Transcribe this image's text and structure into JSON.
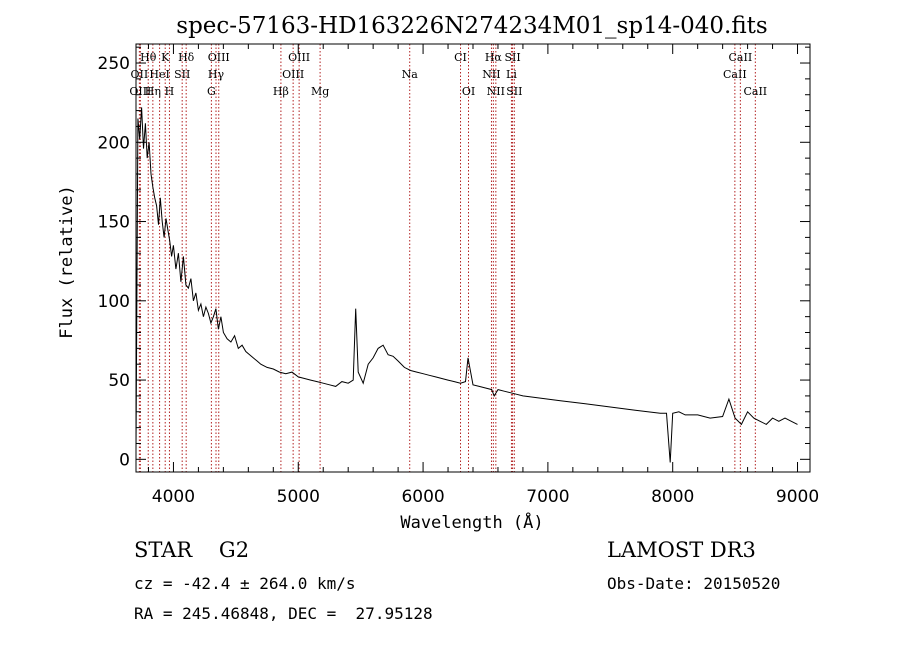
{
  "chart_data": {
    "type": "line",
    "title": "spec-57163-HD163226N274234M01_sp14-040.fits",
    "xlabel": "Wavelength (Å)",
    "ylabel": "Flux (relative)",
    "xlim": [
      3700,
      9100
    ],
    "ylim": [
      -8,
      262
    ],
    "xticks": [
      4000,
      5000,
      6000,
      7000,
      8000,
      9000
    ],
    "yticks": [
      0,
      50,
      100,
      150,
      200,
      250
    ],
    "line_color": "#000000",
    "marker_color": "#b22222",
    "grid": false,
    "spectrum": {
      "name": "",
      "x": [
        3700,
        3715,
        3730,
        3745,
        3760,
        3775,
        3790,
        3805,
        3820,
        3835,
        3850,
        3865,
        3880,
        3895,
        3910,
        3925,
        3940,
        3955,
        3970,
        3985,
        4000,
        4020,
        4040,
        4060,
        4080,
        4100,
        4120,
        4140,
        4160,
        4180,
        4200,
        4220,
        4240,
        4260,
        4280,
        4300,
        4320,
        4340,
        4360,
        4380,
        4400,
        4430,
        4460,
        4490,
        4520,
        4550,
        4580,
        4610,
        4640,
        4670,
        4700,
        4750,
        4800,
        4850,
        4900,
        4950,
        5000,
        5050,
        5100,
        5150,
        5200,
        5250,
        5300,
        5350,
        5400,
        5440,
        5460,
        5480,
        5520,
        5560,
        5600,
        5640,
        5680,
        5720,
        5760,
        5800,
        5850,
        5900,
        5950,
        6000,
        6050,
        6100,
        6150,
        6200,
        6250,
        6300,
        6340,
        6360,
        6400,
        6450,
        6500,
        6550,
        6570,
        6600,
        6650,
        6700,
        6750,
        6800,
        6900,
        7000,
        7100,
        7200,
        7300,
        7400,
        7500,
        7600,
        7700,
        7800,
        7900,
        7950,
        7980,
        8000,
        8050,
        8100,
        8200,
        8300,
        8400,
        8450,
        8500,
        8550,
        8600,
        8650,
        8700,
        8750,
        8800,
        8850,
        8900,
        8950,
        9000
      ],
      "y": [
        5,
        215,
        202,
        222,
        196,
        212,
        190,
        200,
        180,
        172,
        165,
        160,
        148,
        165,
        150,
        140,
        152,
        145,
        138,
        128,
        135,
        120,
        130,
        112,
        128,
        110,
        108,
        114,
        100,
        105,
        94,
        98,
        90,
        96,
        92,
        86,
        90,
        95,
        82,
        90,
        80,
        76,
        74,
        78,
        70,
        72,
        68,
        66,
        64,
        62,
        60,
        58,
        57,
        55,
        54,
        55,
        52,
        51,
        50,
        49,
        48,
        47,
        46,
        49,
        48,
        50,
        95,
        55,
        48,
        60,
        64,
        70,
        72,
        66,
        65,
        62,
        58,
        56,
        55,
        54,
        53,
        52,
        51,
        50,
        49,
        48,
        49,
        64,
        47,
        46,
        45,
        44,
        40,
        44,
        43,
        42,
        41,
        40,
        39,
        38,
        37,
        36,
        35,
        34,
        33,
        32,
        31,
        30,
        29,
        29,
        -2,
        29,
        30,
        28,
        28,
        26,
        27,
        38,
        26,
        22,
        30,
        26,
        24,
        22,
        26,
        24,
        26,
        24,
        22
      ]
    },
    "lines_row1": [
      {
        "label": "Hθ",
        "x": 3798
      },
      {
        "label": "K",
        "x": 3934
      },
      {
        "label": "Hδ",
        "x": 4102
      },
      {
        "label": "OIII",
        "x": 4363
      },
      {
        "label": "OIII",
        "x": 5007
      },
      {
        "label": "CI",
        "x": 6300
      },
      {
        "label": "Hα",
        "x": 6563
      },
      {
        "label": "SII",
        "x": 6717
      },
      {
        "label": "CaII",
        "x": 8542
      }
    ],
    "lines_row2": [
      {
        "label": "OII",
        "x": 3727
      },
      {
        "label": "HeI",
        "x": 3889
      },
      {
        "label": "SII",
        "x": 4070
      },
      {
        "label": "Hγ",
        "x": 4341
      },
      {
        "label": "OIII",
        "x": 4959
      },
      {
        "label": "Na",
        "x": 5893
      },
      {
        "label": "NII",
        "x": 6548
      },
      {
        "label": "Li",
        "x": 6708
      },
      {
        "label": "CaII",
        "x": 8498
      }
    ],
    "lines_row3": [
      {
        "label": "OIII",
        "x": 3735
      },
      {
        "label": "Hη",
        "x": 3835
      },
      {
        "label": "H",
        "x": 3968
      },
      {
        "label": "G",
        "x": 4304
      },
      {
        "label": "Hβ",
        "x": 4861
      },
      {
        "label": "Mg",
        "x": 5175
      },
      {
        "label": "OI",
        "x": 6364
      },
      {
        "label": "NII",
        "x": 6583
      },
      {
        "label": "SII",
        "x": 6731
      },
      {
        "label": "CaII",
        "x": 8662
      }
    ]
  },
  "info": {
    "class_line": "STAR    G2",
    "survey": "LAMOST DR3",
    "cz": "cz = -42.4 ± 264.0 km/s",
    "obs_date": "Obs-Date: 20150520",
    "coords": "RA = 245.46848, DEC =  27.95128"
  }
}
